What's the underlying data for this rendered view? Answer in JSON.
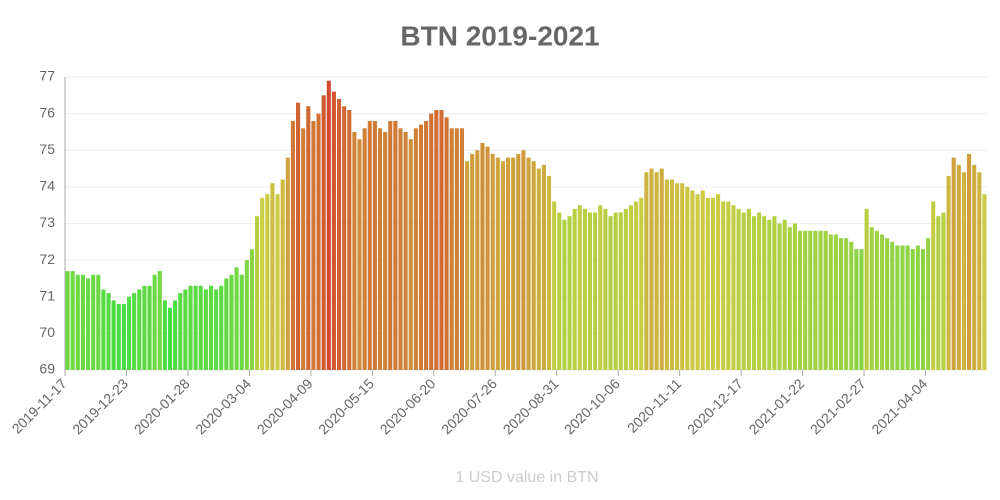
{
  "chart_data": {
    "type": "bar",
    "title": "BTN 2019-2021",
    "x_label": "1 USD value in BTN",
    "categories": [
      "2019-11-17",
      null,
      null,
      null,
      null,
      null,
      null,
      null,
      null,
      null,
      null,
      null,
      "2019-12-23",
      null,
      null,
      null,
      null,
      null,
      null,
      null,
      null,
      null,
      null,
      null,
      "2020-01-28",
      null,
      null,
      null,
      null,
      null,
      null,
      null,
      null,
      null,
      null,
      null,
      "2020-03-04",
      null,
      null,
      null,
      null,
      null,
      null,
      null,
      null,
      null,
      null,
      null,
      "2020-04-09",
      null,
      null,
      null,
      null,
      null,
      null,
      null,
      null,
      null,
      null,
      null,
      "2020-05-15",
      null,
      null,
      null,
      null,
      null,
      null,
      null,
      null,
      null,
      null,
      null,
      "2020-06-20",
      null,
      null,
      null,
      null,
      null,
      null,
      null,
      null,
      null,
      null,
      null,
      "2020-07-26",
      null,
      null,
      null,
      null,
      null,
      null,
      null,
      null,
      null,
      null,
      null,
      "2020-08-31",
      null,
      null,
      null,
      null,
      null,
      null,
      null,
      null,
      null,
      null,
      null,
      "2020-10-06",
      null,
      null,
      null,
      null,
      null,
      null,
      null,
      null,
      null,
      null,
      null,
      "2020-11-11",
      null,
      null,
      null,
      null,
      null,
      null,
      null,
      null,
      null,
      null,
      null,
      "2020-12-17",
      null,
      null,
      null,
      null,
      null,
      null,
      null,
      null,
      null,
      null,
      null,
      "2021-01-22",
      null,
      null,
      null,
      null,
      null,
      null,
      null,
      null,
      null,
      null,
      null,
      "2021-02-27",
      null,
      null,
      null,
      null,
      null,
      null,
      null,
      null,
      null,
      null,
      null,
      "2021-04-04",
      null,
      null,
      null,
      null,
      null,
      null,
      null,
      null,
      null,
      null,
      null
    ],
    "values": [
      71.7,
      71.7,
      71.6,
      71.6,
      71.5,
      71.6,
      71.6,
      71.2,
      71.1,
      70.9,
      70.8,
      70.8,
      71.0,
      71.1,
      71.2,
      71.3,
      71.3,
      71.6,
      71.7,
      70.9,
      70.7,
      70.9,
      71.1,
      71.2,
      71.3,
      71.3,
      71.3,
      71.2,
      71.3,
      71.2,
      71.3,
      71.5,
      71.6,
      71.8,
      71.6,
      72.0,
      72.3,
      73.2,
      73.7,
      73.8,
      74.1,
      73.8,
      74.2,
      74.8,
      75.8,
      76.3,
      75.6,
      76.2,
      75.8,
      76.0,
      76.5,
      76.9,
      76.6,
      76.4,
      76.2,
      76.1,
      75.5,
      75.3,
      75.6,
      75.8,
      75.8,
      75.6,
      75.5,
      75.8,
      75.8,
      75.6,
      75.5,
      75.3,
      75.6,
      75.7,
      75.8,
      76.0,
      76.1,
      76.1,
      75.9,
      75.6,
      75.6,
      75.6,
      74.7,
      74.9,
      75.0,
      75.2,
      75.1,
      74.9,
      74.8,
      74.7,
      74.8,
      74.8,
      74.9,
      75.0,
      74.8,
      74.7,
      74.5,
      74.6,
      74.3,
      73.6,
      73.3,
      73.1,
      73.2,
      73.4,
      73.5,
      73.4,
      73.3,
      73.3,
      73.5,
      73.4,
      73.2,
      73.3,
      73.3,
      73.4,
      73.5,
      73.6,
      73.7,
      74.4,
      74.5,
      74.4,
      74.5,
      74.2,
      74.2,
      74.1,
      74.1,
      74.0,
      73.9,
      73.8,
      73.9,
      73.7,
      73.7,
      73.8,
      73.6,
      73.6,
      73.5,
      73.4,
      73.3,
      73.4,
      73.2,
      73.3,
      73.2,
      73.1,
      73.2,
      73.0,
      73.1,
      72.9,
      73.0,
      72.8,
      72.8,
      72.8,
      72.8,
      72.8,
      72.8,
      72.7,
      72.7,
      72.6,
      72.6,
      72.5,
      72.3,
      72.3,
      73.4,
      72.9,
      72.8,
      72.7,
      72.6,
      72.5,
      72.4,
      72.4,
      72.4,
      72.3,
      72.4,
      72.3,
      72.6,
      73.6,
      73.2,
      73.3,
      74.3,
      74.8,
      74.6,
      74.4,
      74.9,
      74.6,
      74.4,
      73.8
    ],
    "color_scale": [
      "#44dd44",
      "#cccc44",
      "#d24a2e"
    ],
    "ylim": [
      69,
      77
    ],
    "yticks": [
      69,
      70,
      71,
      72,
      73,
      74,
      75,
      76,
      77
    ],
    "grid": true
  }
}
